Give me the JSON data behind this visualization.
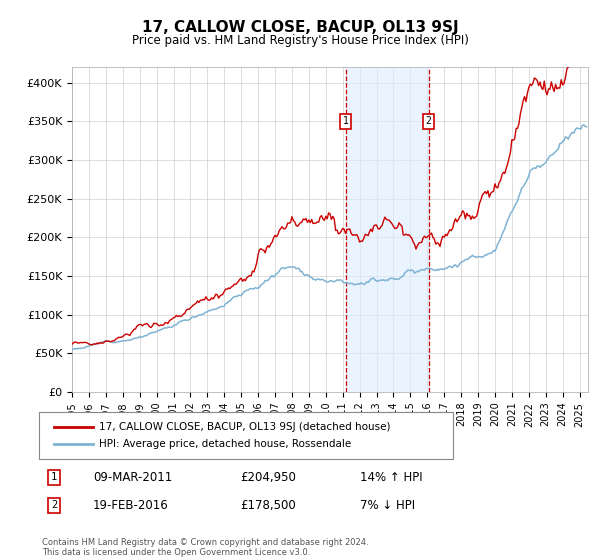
{
  "title": "17, CALLOW CLOSE, BACUP, OL13 9SJ",
  "subtitle": "Price paid vs. HM Land Registry's House Price Index (HPI)",
  "legend_line1": "17, CALLOW CLOSE, BACUP, OL13 9SJ (detached house)",
  "legend_line2": "HPI: Average price, detached house, Rossendale",
  "annotation1_date": "09-MAR-2011",
  "annotation1_price": "£204,950",
  "annotation1_hpi": "14% ↑ HPI",
  "annotation2_date": "19-FEB-2016",
  "annotation2_price": "£178,500",
  "annotation2_hpi": "7% ↓ HPI",
  "footer": "Contains HM Land Registry data © Crown copyright and database right 2024.\nThis data is licensed under the Open Government Licence v3.0.",
  "property_color": "#cc0000",
  "hpi_color": "#7fb3d3",
  "annotation_vline_color": "#cc0000",
  "annotation_fill_color": "#ddeeff",
  "ylim": [
    0,
    420000
  ],
  "yticks": [
    0,
    50000,
    100000,
    150000,
    200000,
    250000,
    300000,
    350000,
    400000
  ],
  "ytick_labels": [
    "£0",
    "£50K",
    "£100K",
    "£150K",
    "£200K",
    "£250K",
    "£300K",
    "£350K",
    "£400K"
  ],
  "ann1_x": 2011.17,
  "ann2_x": 2016.08,
  "xlim_start": 1995.0,
  "xlim_end": 2025.5
}
